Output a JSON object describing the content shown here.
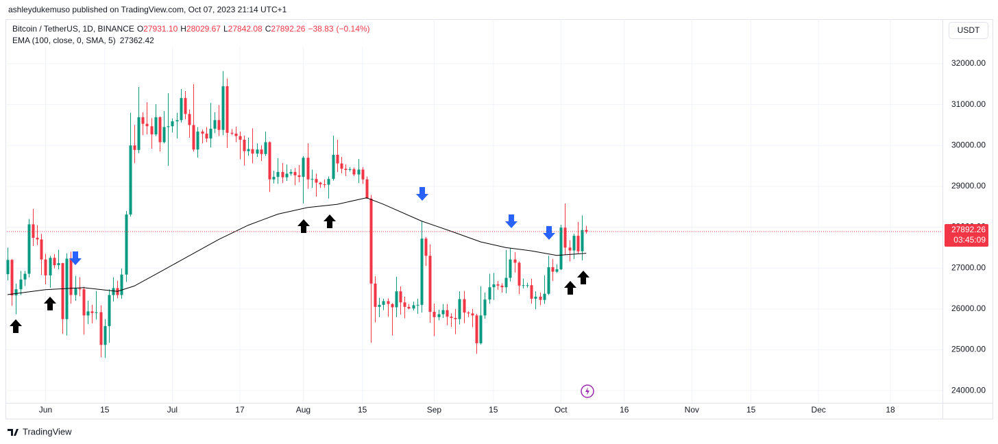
{
  "header": "ashleydukemuso published on TradingView.com, Oct 07, 2023 21:14 UTC+1",
  "footer": "TradingView",
  "chart_data": {
    "type": "candlestick",
    "symbol": "Bitcoin / TetherUS, 1D, BINANCE",
    "ohlc_legend": [
      {
        "key": "O",
        "value": 27931.1,
        "label": "27931.10"
      },
      {
        "key": "H",
        "value": 28029.67,
        "label": "28029.67"
      },
      {
        "key": "L",
        "value": 27842.08,
        "label": "27842.08"
      },
      {
        "key": "C",
        "value": 27892.26,
        "label": "27892.26"
      }
    ],
    "change": {
      "value": -38.83,
      "label": "−38.83"
    },
    "change_pct": {
      "value": -0.14,
      "label": "(−0.14%)"
    },
    "currency": "USDT",
    "countdown": "03:45:09",
    "up_color": "#089981",
    "down_color": "#f23645",
    "x": [
      "2023-05-23",
      "2023-05-24",
      "2023-05-25",
      "2023-05-26",
      "2023-05-27",
      "2023-05-28",
      "2023-05-29",
      "2023-05-30",
      "2023-05-31",
      "2023-06-01",
      "2023-06-02",
      "2023-06-03",
      "2023-06-04",
      "2023-06-05",
      "2023-06-06",
      "2023-06-07",
      "2023-06-08",
      "2023-06-09",
      "2023-06-10",
      "2023-06-11",
      "2023-06-12",
      "2023-06-13",
      "2023-06-14",
      "2023-06-15",
      "2023-06-16",
      "2023-06-17",
      "2023-06-18",
      "2023-06-19",
      "2023-06-20",
      "2023-06-21",
      "2023-06-22",
      "2023-06-23",
      "2023-06-24",
      "2023-06-25",
      "2023-06-26",
      "2023-06-27",
      "2023-06-28",
      "2023-06-29",
      "2023-06-30",
      "2023-07-01",
      "2023-07-02",
      "2023-07-03",
      "2023-07-04",
      "2023-07-05",
      "2023-07-06",
      "2023-07-07",
      "2023-07-08",
      "2023-07-09",
      "2023-07-10",
      "2023-07-11",
      "2023-07-12",
      "2023-07-13",
      "2023-07-14",
      "2023-07-15",
      "2023-07-16",
      "2023-07-17",
      "2023-07-18",
      "2023-07-19",
      "2023-07-20",
      "2023-07-21",
      "2023-07-22",
      "2023-07-23",
      "2023-07-24",
      "2023-07-25",
      "2023-07-26",
      "2023-07-27",
      "2023-07-28",
      "2023-07-29",
      "2023-07-30",
      "2023-07-31",
      "2023-08-01",
      "2023-08-02",
      "2023-08-03",
      "2023-08-04",
      "2023-08-05",
      "2023-08-06",
      "2023-08-07",
      "2023-08-08",
      "2023-08-09",
      "2023-08-10",
      "2023-08-11",
      "2023-08-12",
      "2023-08-13",
      "2023-08-14",
      "2023-08-15",
      "2023-08-16",
      "2023-08-17",
      "2023-08-18",
      "2023-08-19",
      "2023-08-20",
      "2023-08-21",
      "2023-08-22",
      "2023-08-23",
      "2023-08-24",
      "2023-08-25",
      "2023-08-26",
      "2023-08-27",
      "2023-08-28",
      "2023-08-29",
      "2023-08-30",
      "2023-08-31",
      "2023-09-01",
      "2023-09-02",
      "2023-09-03",
      "2023-09-04",
      "2023-09-05",
      "2023-09-06",
      "2023-09-07",
      "2023-09-08",
      "2023-09-09",
      "2023-09-10",
      "2023-09-11",
      "2023-09-12",
      "2023-09-13",
      "2023-09-14",
      "2023-09-15",
      "2023-09-16",
      "2023-09-17",
      "2023-09-18",
      "2023-09-19",
      "2023-09-20",
      "2023-09-21",
      "2023-09-22",
      "2023-09-23",
      "2023-09-24",
      "2023-09-25",
      "2023-09-26",
      "2023-09-27",
      "2023-09-28",
      "2023-09-29",
      "2023-09-30",
      "2023-10-01",
      "2023-10-02",
      "2023-10-03",
      "2023-10-04",
      "2023-10-05",
      "2023-10-06",
      "2023-10-07"
    ],
    "open": [
      26850,
      27200,
      26330,
      26480,
      26720,
      26860,
      28070,
      27740,
      27700,
      27210,
      26820,
      27250,
      27070,
      27120,
      25750,
      27230,
      26340,
      26500,
      26480,
      25840,
      25940,
      25900,
      25920,
      25120,
      25580,
      26340,
      26510,
      26340,
      26840,
      28310,
      30000,
      29890,
      30690,
      30530,
      30470,
      30270,
      30690,
      30080,
      30450,
      30470,
      30590,
      30620,
      31160,
      30770,
      30500,
      29900,
      30340,
      30290,
      30170,
      30410,
      30620,
      30380,
      31450,
      30310,
      30290,
      30230,
      30140,
      29860,
      29910,
      29800,
      29900,
      29790,
      30080,
      29170,
      29230,
      29350,
      29220,
      29310,
      29350,
      29270,
      29230,
      29700,
      29170,
      29180,
      29090,
      29050,
      29040,
      29180,
      29770,
      29560,
      29430,
      29400,
      29420,
      29290,
      29410,
      29170,
      28700,
      26620,
      26050,
      26100,
      26190,
      26120,
      26040,
      26430,
      26160,
      26050,
      26010,
      26090,
      26100,
      27720,
      27300,
      25930,
      25800,
      25870,
      25970,
      25810,
      25780,
      25750,
      26240,
      25910,
      25890,
      25840,
      25160,
      25840,
      26230,
      26530,
      26600,
      26570,
      26530,
      26760,
      27210,
      27130,
      26570,
      26580,
      26580,
      26250,
      26300,
      26220,
      26370,
      27020,
      26910,
      26970,
      27990,
      27500,
      27430,
      27790,
      27410,
      27931.1
    ],
    "high": [
      27500,
      27220,
      26620,
      26930,
      26930,
      28200,
      28450,
      28050,
      27840,
      27350,
      27300,
      27340,
      27450,
      27130,
      27360,
      27400,
      26810,
      26780,
      26540,
      26200,
      26100,
      26440,
      26090,
      25750,
      26480,
      26770,
      26690,
      26990,
      28400,
      30800,
      30500,
      31430,
      30810,
      31060,
      30670,
      31010,
      30710,
      30840,
      31280,
      30660,
      30800,
      31380,
      31330,
      30880,
      31500,
      30450,
      30390,
      30450,
      31040,
      30810,
      30990,
      31820,
      31640,
      30400,
      30460,
      30340,
      30240,
      30190,
      30420,
      30050,
      30000,
      30340,
      30100,
      29380,
      29690,
      29570,
      29530,
      29420,
      29450,
      29520,
      29740,
      30050,
      29410,
      29310,
      29110,
      29170,
      29240,
      30240,
      30140,
      29720,
      29540,
      29470,
      29460,
      29670,
      29470,
      29240,
      28790,
      26800,
      26270,
      26250,
      26260,
      26140,
      26790,
      26550,
      26300,
      26120,
      26180,
      26250,
      28140,
      27760,
      27580,
      26130,
      25980,
      26120,
      26120,
      25890,
      26000,
      26430,
      26440,
      25940,
      26000,
      25880,
      26550,
      26400,
      26860,
      26880,
      26680,
      26630,
      27440,
      27490,
      27390,
      27160,
      26740,
      26640,
      26740,
      26430,
      26400,
      26820,
      27300,
      27220,
      27090,
      28060,
      28580,
      27680,
      27840,
      28130,
      28290,
      28029.67
    ],
    "low": [
      26700,
      26080,
      25870,
      26340,
      26560,
      26770,
      27540,
      27560,
      26830,
      26600,
      26520,
      26990,
      26970,
      25390,
      25350,
      26130,
      26200,
      26310,
      25370,
      25630,
      25650,
      25740,
      24820,
      24800,
      25170,
      26180,
      26260,
      26250,
      26660,
      28260,
      29570,
      29810,
      30250,
      30270,
      29920,
      30230,
      29850,
      30050,
      29500,
      30320,
      30170,
      30560,
      30640,
      30190,
      29850,
      29700,
      30050,
      30080,
      29950,
      30300,
      30230,
      30250,
      29940,
      30250,
      30080,
      29660,
      29510,
      29750,
      29560,
      29720,
      29620,
      29740,
      28860,
      29070,
      29060,
      29080,
      29130,
      29260,
      29030,
      29100,
      28580,
      28940,
      28960,
      28750,
      28960,
      28960,
      28700,
      29140,
      29350,
      29320,
      29250,
      29360,
      29250,
      29080,
      29060,
      28700,
      25170,
      25670,
      25800,
      25970,
      25810,
      25350,
      25800,
      25860,
      25770,
      25990,
      25960,
      25880,
      25910,
      27050,
      25660,
      25330,
      25720,
      25780,
      25600,
      25560,
      25380,
      25620,
      25650,
      25800,
      25550,
      24900,
      25130,
      25760,
      26130,
      26220,
      26470,
      26400,
      26380,
      26670,
      26890,
      26360,
      26500,
      26520,
      26130,
      25990,
      26090,
      26120,
      26340,
      26680,
      26880,
      26950,
      27330,
      27160,
      27220,
      27340,
      27190,
      27842.08
    ],
    "close": [
      27200,
      26330,
      26480,
      26720,
      26860,
      28070,
      27740,
      27700,
      27210,
      26820,
      27250,
      27070,
      27120,
      25750,
      27230,
      26340,
      26500,
      26480,
      25840,
      25940,
      25900,
      25920,
      25120,
      25580,
      26340,
      26510,
      26340,
      26840,
      28310,
      30000,
      29890,
      30690,
      30530,
      30470,
      30270,
      30690,
      30080,
      30450,
      30470,
      30590,
      30620,
      31160,
      30770,
      30500,
      29900,
      30340,
      30290,
      30170,
      30410,
      30620,
      30380,
      31450,
      30310,
      30290,
      30230,
      30140,
      29860,
      29910,
      29800,
      29900,
      29790,
      30080,
      29170,
      29230,
      29350,
      29220,
      29310,
      29350,
      29270,
      29230,
      29700,
      29170,
      29180,
      29090,
      29050,
      29040,
      29180,
      29770,
      29560,
      29430,
      29400,
      29420,
      29290,
      29410,
      29170,
      28700,
      26620,
      26050,
      26100,
      26190,
      26120,
      26040,
      26430,
      26160,
      26050,
      26010,
      26090,
      26100,
      27720,
      27300,
      25930,
      25800,
      25870,
      25970,
      25810,
      25780,
      25750,
      26240,
      25910,
      25890,
      25840,
      25160,
      25840,
      26230,
      26530,
      26600,
      26570,
      26530,
      26760,
      27210,
      27130,
      26570,
      26580,
      26580,
      26250,
      26300,
      26220,
      26370,
      27020,
      26910,
      26970,
      27990,
      27500,
      27430,
      27790,
      27410,
      27930,
      27892.26
    ],
    "indicator": {
      "name": "EMA (100, close, 0, SMA, 5)",
      "value": 27362.42,
      "color": "#000000",
      "x": [
        "2023-05-23",
        "2023-06-01",
        "2023-06-10",
        "2023-06-18",
        "2023-06-22",
        "2023-06-28",
        "2023-07-05",
        "2023-07-12",
        "2023-07-19",
        "2023-07-26",
        "2023-08-02",
        "2023-08-09",
        "2023-08-16",
        "2023-08-20",
        "2023-08-29",
        "2023-09-05",
        "2023-09-12",
        "2023-09-18",
        "2023-09-24",
        "2023-09-30",
        "2023-10-07"
      ],
      "values": [
        26350,
        26470,
        26520,
        26430,
        26560,
        26900,
        27300,
        27700,
        28050,
        28320,
        28480,
        28560,
        28720,
        28560,
        28150,
        27900,
        27640,
        27500,
        27420,
        27310,
        27362.42
      ]
    },
    "ylim": [
      23700,
      33090
    ],
    "yticks": [
      {
        "value": 24000,
        "label": "24000.00"
      },
      {
        "value": 25000,
        "label": "25000.00"
      },
      {
        "value": 26000,
        "label": "26000.00"
      },
      {
        "value": 27000,
        "label": "27000.00"
      },
      {
        "value": 28000,
        "label": "28000.00"
      },
      {
        "value": 29000,
        "label": "29000.00"
      },
      {
        "value": 30000,
        "label": "30000.00"
      },
      {
        "value": 31000,
        "label": "31000.00"
      },
      {
        "value": 32000,
        "label": "32000.00"
      }
    ],
    "xlim": [
      "2023-05-22T20:00",
      "2023-12-30T08:00"
    ],
    "xticks": [
      {
        "value": "2023-06-01",
        "label": "Jun"
      },
      {
        "value": "2023-06-15",
        "label": "15"
      },
      {
        "value": "2023-07-01",
        "label": "Jul"
      },
      {
        "value": "2023-07-17",
        "label": "17"
      },
      {
        "value": "2023-08-01",
        "label": "Aug"
      },
      {
        "value": "2023-08-15",
        "label": "15"
      },
      {
        "value": "2023-09-01",
        "label": "Sep"
      },
      {
        "value": "2023-09-15",
        "label": "15"
      },
      {
        "value": "2023-10-01",
        "label": "Oct"
      },
      {
        "value": "2023-10-16",
        "label": "16"
      },
      {
        "value": "2023-11-01",
        "label": "Nov"
      },
      {
        "value": "2023-11-15",
        "label": "15"
      },
      {
        "value": "2023-12-01",
        "label": "Dec"
      },
      {
        "value": "2023-12-18",
        "label": "18"
      }
    ],
    "grid": true
  }
}
